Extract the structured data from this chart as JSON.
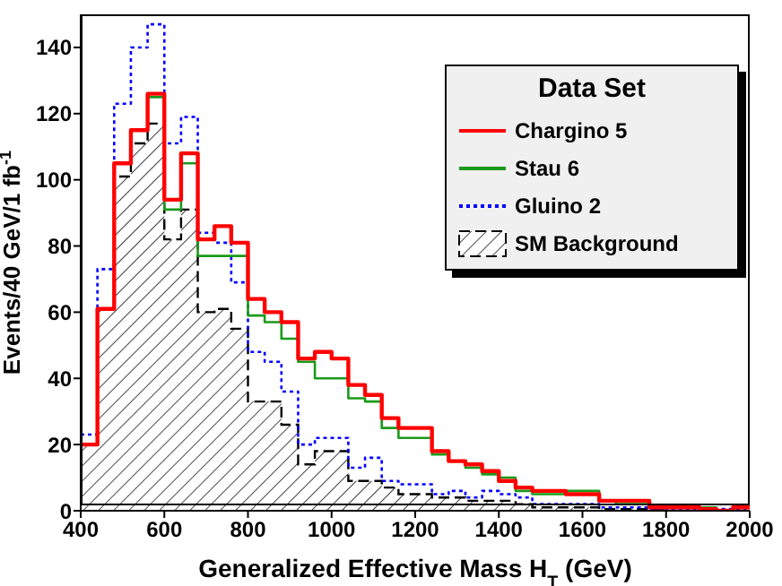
{
  "chart_data": {
    "type": "histogram",
    "xlabel": "Generalized Effective Mass H$_{T}$ (GeV)",
    "ylabel": "Events/40 GeV/1 fb$^{-1}$",
    "legend_title": "Data Set",
    "legend": "top right",
    "bins": [
      400,
      440,
      480,
      520,
      560,
      600,
      640,
      680,
      720,
      760,
      800,
      840,
      880,
      920,
      960,
      1000,
      1040,
      1080,
      1120,
      1160,
      1200,
      1240,
      1280,
      1320,
      1360,
      1400,
      1440,
      1480,
      1520,
      1560,
      1600,
      1640,
      1680,
      1720,
      1760,
      1800,
      1840,
      1880,
      1920,
      1960,
      2000
    ],
    "series": [
      {
        "name": "Chargino 5",
        "color": "#ff0000",
        "line_style": "solid",
        "values": [
          20,
          61,
          105,
          115,
          126,
          94,
          108,
          82,
          86,
          81,
          64,
          60,
          57,
          46,
          48,
          46,
          38,
          35,
          28,
          25,
          25,
          18,
          15,
          14,
          12,
          9,
          7,
          6,
          6,
          5,
          5,
          3,
          3,
          3,
          1,
          1,
          1,
          0.5,
          0,
          1
        ]
      },
      {
        "name": "Stau 6",
        "color": "#1a9a1a",
        "line_style": "solid",
        "values": [
          20,
          61,
          105,
          115,
          125,
          91,
          105,
          77,
          77,
          77,
          59,
          57,
          52,
          45,
          40,
          40,
          34,
          33,
          25,
          22,
          22,
          17,
          15,
          13,
          11,
          10,
          6,
          5,
          5,
          6,
          6,
          3,
          2,
          2,
          1,
          1,
          1,
          1,
          0,
          1
        ]
      },
      {
        "name": "Gluino 2",
        "color": "#0000ff",
        "line_style": "dotted",
        "values": [
          23,
          73,
          123,
          140,
          147,
          111,
          119,
          84,
          81,
          69,
          48,
          45,
          36,
          20,
          22,
          22,
          13,
          16,
          9,
          8,
          8,
          5,
          6,
          4,
          6,
          5,
          4,
          2,
          2,
          2,
          2,
          1,
          1,
          1,
          0.5,
          0.5,
          0.5,
          0.5,
          0.5,
          0.5
        ]
      },
      {
        "name": "SM Background",
        "type": "histogram",
        "color": "#000000",
        "line_style": "dashed",
        "values": [
          20,
          61,
          101,
          111,
          117,
          82,
          91,
          60,
          61,
          55,
          33,
          33,
          26,
          14,
          18,
          18,
          9,
          9,
          7,
          5,
          5,
          4,
          4,
          3,
          3,
          3,
          2,
          1,
          1,
          1,
          1,
          0.5,
          0.5,
          0.5,
          0.5,
          0,
          0,
          0,
          0,
          0
        ]
      }
    ],
    "xlim": [
      400,
      2000
    ],
    "xticks": [
      400,
      600,
      800,
      1000,
      1200,
      1400,
      1600,
      1800,
      2000
    ],
    "ylim": [
      0,
      150
    ],
    "yticks": [
      0,
      20,
      40,
      60,
      80,
      100,
      120,
      140
    ]
  }
}
